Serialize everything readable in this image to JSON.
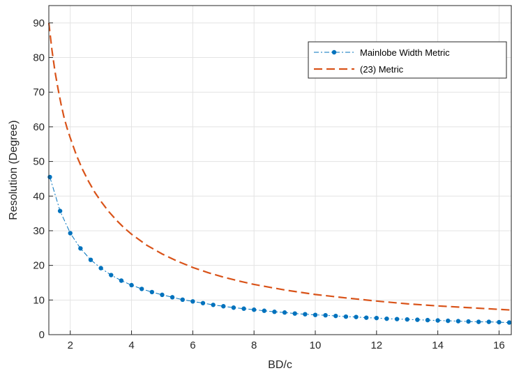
{
  "chart_data": {
    "type": "line",
    "xlabel": "BD/c",
    "ylabel": "Resolution (Degree)",
    "xlim": [
      1.3,
      16.4
    ],
    "ylim": [
      0,
      95
    ],
    "xticks": [
      2,
      4,
      6,
      8,
      10,
      12,
      14,
      16
    ],
    "yticks": [
      0,
      10,
      20,
      30,
      40,
      50,
      60,
      70,
      80,
      90
    ],
    "grid": true,
    "legend_position": "top-right",
    "series": [
      {
        "name": "Mainlobe Width Metric",
        "color": "#0072BD",
        "line_style": "dash-dot",
        "marker": "dot",
        "x": [
          1.333,
          1.667,
          2.0,
          2.333,
          2.667,
          3.0,
          3.333,
          3.667,
          4.0,
          4.333,
          4.667,
          5.0,
          5.333,
          5.667,
          6.0,
          6.333,
          6.667,
          7.0,
          7.333,
          7.667,
          8.0,
          8.333,
          8.667,
          9.0,
          9.333,
          9.667,
          10.0,
          10.333,
          10.667,
          11.0,
          11.333,
          11.667,
          12.0,
          12.333,
          12.667,
          13.0,
          13.333,
          13.667,
          14.0,
          14.333,
          14.667,
          15.0,
          15.333,
          15.667,
          16.0,
          16.333
        ],
        "y": [
          45.5,
          35.7,
          29.3,
          24.9,
          21.6,
          19.2,
          17.2,
          15.6,
          14.3,
          13.2,
          12.3,
          11.5,
          10.8,
          10.1,
          9.6,
          9.1,
          8.6,
          8.2,
          7.8,
          7.5,
          7.2,
          6.9,
          6.6,
          6.4,
          6.1,
          5.9,
          5.7,
          5.6,
          5.4,
          5.2,
          5.1,
          4.9,
          4.8,
          4.6,
          4.5,
          4.4,
          4.3,
          4.2,
          4.1,
          4.0,
          3.9,
          3.8,
          3.7,
          3.7,
          3.6,
          3.5
        ]
      },
      {
        "name": "(23) Metric",
        "color": "#D95319",
        "line_style": "dashed",
        "marker": "none",
        "x": [
          1.3,
          1.4,
          1.5,
          1.6,
          1.7,
          1.8,
          1.9,
          2.0,
          2.2,
          2.4,
          2.6,
          2.8,
          3.0,
          3.25,
          3.5,
          3.75,
          4.0,
          4.5,
          5.0,
          5.5,
          6.0,
          6.5,
          7.0,
          7.5,
          8.0,
          9.0,
          10.0,
          11.0,
          12.0,
          13.0,
          14.0,
          15.0,
          16.0,
          16.4
        ],
        "y": [
          90.0,
          82.3,
          76.0,
          71.0,
          66.5,
          62.6,
          59.5,
          56.8,
          51.8,
          47.7,
          44.2,
          41.1,
          38.5,
          35.6,
          33.1,
          30.9,
          29.0,
          25.8,
          23.3,
          21.2,
          19.4,
          17.9,
          16.6,
          15.5,
          14.5,
          12.9,
          11.6,
          10.6,
          9.7,
          8.9,
          8.3,
          7.8,
          7.3,
          7.1
        ]
      }
    ]
  }
}
